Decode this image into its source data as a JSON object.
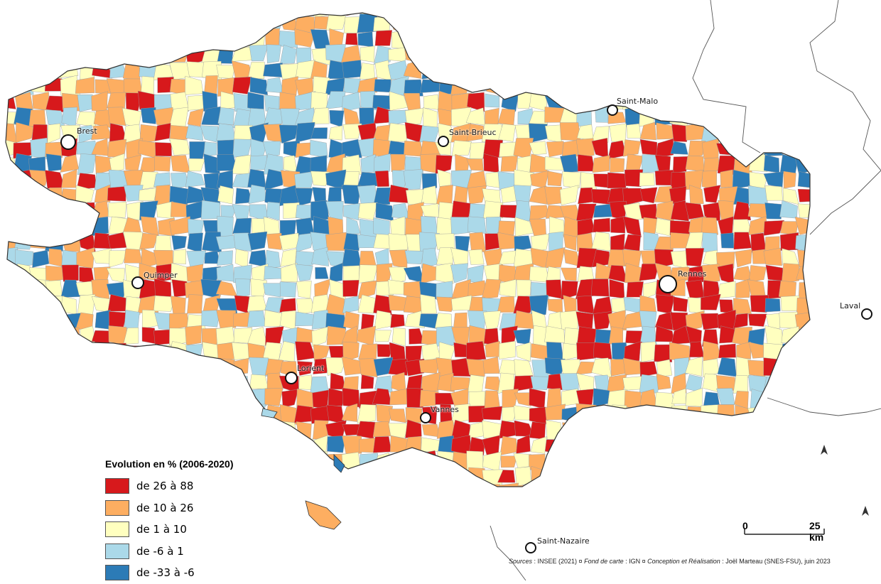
{
  "legend": {
    "title": "Evolution en % (2006-2020)",
    "classes": [
      {
        "label": "de 26 à 88",
        "color": "#d7191c"
      },
      {
        "label": "de 10 à 26",
        "color": "#fdae61"
      },
      {
        "label": "de 1 à 10",
        "color": "#ffffbf"
      },
      {
        "label": "de -6 à 1",
        "color": "#abd9e9"
      },
      {
        "label": "de -33 à -6",
        "color": "#2c7bb6"
      }
    ]
  },
  "cities": [
    "Brest",
    "Saint-Brieuc",
    "Saint-Malo",
    "Quimper",
    "Rennes",
    "Laval",
    "Lorient",
    "Vannes",
    "Saint-Nazaire"
  ],
  "scale": {
    "start": "0",
    "end": "25 km"
  },
  "source": {
    "sources_label": "Sources",
    "sources_text": " : INSEE (2021) ¤ ",
    "basemap_label": "Fond de carte",
    "basemap_text": " : IGN ¤ ",
    "author_label": "Conception et Réalisation",
    "author_text": " : Joël Marteau (SNES-FSU), juin 2023"
  },
  "colors": {
    "border": "#333333",
    "background": "#ffffff"
  }
}
